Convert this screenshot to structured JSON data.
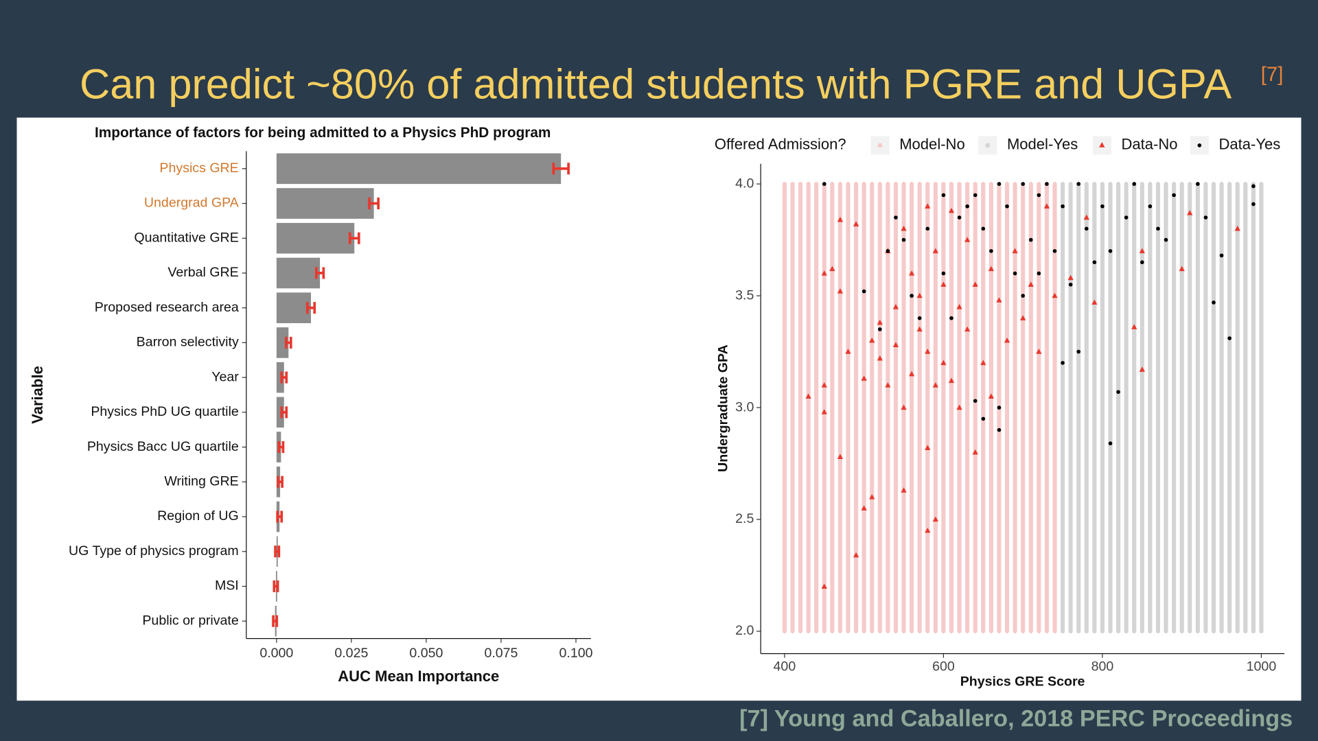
{
  "slide": {
    "title": "Can predict ~80% of admitted students with PGRE and UGPA",
    "title_ref": "[7]",
    "citation": "[7] Young and Caballero, 2018 PERC Proceedings"
  },
  "chart_data": [
    {
      "type": "hbar_error",
      "title": "Importance of factors for being admitted to a Physics PhD program",
      "xlabel": "AUC Mean Importance",
      "ylabel": "Variable",
      "categories": [
        "Physics GRE",
        "Undergrad GPA",
        "Quantitative GRE",
        "Verbal GRE",
        "Proposed research area",
        "Barron selectivity",
        "Year",
        "Physics PhD UG quartile",
        "Physics Bacc UG quartile",
        "Writing GRE",
        "Region of UG",
        "UG Type of physics program",
        "MSI",
        "Public or private"
      ],
      "category_colors": [
        "#d2782e",
        "#d2782e",
        "#111111",
        "#111111",
        "#111111",
        "#111111",
        "#111111",
        "#111111",
        "#111111",
        "#111111",
        "#111111",
        "#111111",
        "#111111",
        "#111111"
      ],
      "values": [
        0.095,
        0.0325,
        0.026,
        0.0145,
        0.0115,
        0.004,
        0.0025,
        0.0025,
        0.0015,
        0.0012,
        0.001,
        0.0002,
        -0.0002,
        -0.0005
      ],
      "errors": [
        0.0025,
        0.0015,
        0.0015,
        0.0012,
        0.0012,
        0.0008,
        0.0008,
        0.0008,
        0.0007,
        0.0007,
        0.0007,
        0.0006,
        0.0006,
        0.0006
      ],
      "color": "#8c8c8c",
      "error_color": "#e8382e",
      "xlim": [
        -0.0101,
        0.105
      ],
      "xticks": [
        {
          "value": 0,
          "label": "0.000"
        },
        {
          "value": 0.025,
          "label": "0.025"
        },
        {
          "value": 0.05,
          "label": "0.050"
        },
        {
          "value": 0.075,
          "label": "0.075"
        },
        {
          "value": 0.1,
          "label": "0.100"
        }
      ]
    },
    {
      "type": "scatter",
      "xlabel": "Physics GRE Score",
      "ylabel": "Undergraduate GPA",
      "legend_title": "Offered Admission?",
      "legend": "top",
      "xlim": [
        370,
        1029
      ],
      "ylim": [
        1.9,
        4.09
      ],
      "xticks": [
        400,
        600,
        800,
        1000
      ],
      "yticks": [
        {
          "value": 2,
          "label": "2.0"
        },
        {
          "value": 2.5,
          "label": "2.5"
        },
        {
          "value": 3,
          "label": "3.0"
        },
        {
          "value": 3.5,
          "label": "3.5"
        },
        {
          "value": 4,
          "label": "4.0"
        }
      ],
      "model": [
        {
          "name": "Model-No",
          "color": "#f6caca",
          "ymin": 2,
          "ymax": 4,
          "x": [
            400,
            410,
            420,
            430,
            440,
            450,
            460,
            470,
            480,
            490,
            500,
            510,
            520,
            530,
            540,
            550,
            560,
            570,
            580,
            590,
            600,
            610,
            620,
            630,
            640,
            650,
            660,
            670,
            680,
            690,
            700,
            710,
            720,
            730,
            740
          ]
        },
        {
          "name": "Model-Yes",
          "color": "#d4d4d4",
          "ymin": 2,
          "ymax": 4,
          "x": [
            750,
            760,
            770,
            780,
            790,
            800,
            810,
            820,
            830,
            840,
            850,
            860,
            870,
            880,
            890,
            900,
            910,
            920,
            930,
            940,
            950,
            960,
            970,
            980,
            990,
            1000
          ]
        }
      ],
      "series": [
        {
          "name": "Data-No",
          "color": "#e8382e",
          "marker": "triangle",
          "x": [
            430,
            450,
            450,
            450,
            450,
            460,
            470,
            470,
            470,
            480,
            490,
            490,
            500,
            500,
            510,
            510,
            520,
            520,
            530,
            530,
            540,
            540,
            550,
            550,
            550,
            560,
            560,
            570,
            570,
            580,
            580,
            580,
            580,
            590,
            590,
            590,
            600,
            600,
            610,
            610,
            620,
            620,
            630,
            630,
            640,
            640,
            650,
            660,
            660,
            670,
            680,
            690,
            700,
            710,
            720,
            730,
            740,
            760,
            780,
            790,
            840,
            850,
            850,
            900,
            910,
            970
          ],
          "y": [
            3.05,
            3.6,
            3.1,
            2.98,
            2.2,
            3.62,
            3.84,
            3.52,
            2.78,
            3.25,
            3.82,
            2.34,
            3.13,
            2.55,
            3.3,
            2.6,
            3.38,
            3.22,
            3.7,
            3.1,
            3.45,
            3.28,
            3.8,
            3.0,
            2.63,
            3.6,
            3.15,
            3.5,
            3.35,
            3.9,
            3.25,
            2.82,
            2.45,
            3.7,
            3.1,
            2.5,
            3.55,
            3.2,
            3.88,
            3.12,
            3.45,
            3.0,
            3.75,
            3.35,
            3.55,
            2.8,
            3.2,
            3.62,
            3.05,
            3.48,
            3.3,
            3.7,
            3.4,
            3.55,
            3.25,
            3.9,
            3.5,
            3.58,
            3.85,
            3.47,
            3.36,
            3.7,
            3.17,
            3.62,
            3.87,
            3.8
          ]
        },
        {
          "name": "Data-Yes",
          "color": "#000000",
          "marker": "circle",
          "x": [
            450,
            500,
            520,
            530,
            540,
            550,
            560,
            570,
            580,
            600,
            600,
            610,
            620,
            630,
            640,
            640,
            650,
            650,
            660,
            670,
            670,
            670,
            680,
            690,
            700,
            700,
            710,
            720,
            720,
            730,
            740,
            750,
            750,
            760,
            770,
            770,
            780,
            790,
            800,
            810,
            810,
            820,
            830,
            840,
            850,
            860,
            870,
            880,
            890,
            920,
            930,
            940,
            950,
            960,
            990,
            990
          ],
          "y": [
            4.0,
            3.52,
            3.35,
            3.7,
            3.85,
            3.75,
            3.5,
            3.4,
            3.8,
            3.95,
            3.6,
            3.4,
            3.85,
            3.9,
            3.95,
            3.03,
            3.8,
            2.95,
            3.7,
            4.0,
            3.0,
            2.9,
            3.9,
            3.6,
            4.0,
            3.5,
            3.75,
            3.95,
            3.6,
            4.0,
            3.7,
            3.9,
            3.2,
            3.55,
            4.0,
            3.25,
            3.8,
            3.65,
            3.9,
            3.7,
            2.84,
            3.07,
            3.85,
            4.0,
            3.65,
            3.9,
            3.8,
            3.75,
            3.95,
            4.0,
            3.85,
            3.47,
            3.68,
            3.31,
            3.99,
            3.91
          ]
        }
      ]
    }
  ]
}
